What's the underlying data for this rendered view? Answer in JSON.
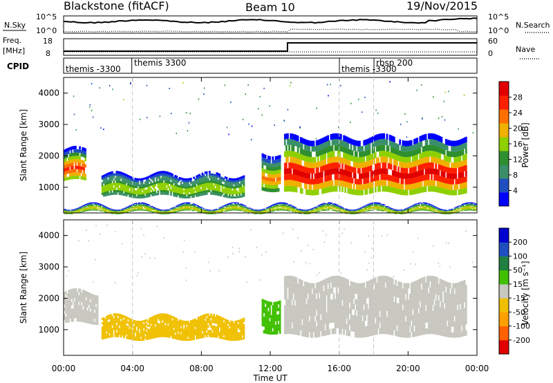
{
  "header": {
    "station": "Blackstone (fitACF)",
    "beam": "Beam 10",
    "date": "19/Nov/2015"
  },
  "strips": {
    "noise": {
      "left_label": "N.Sky",
      "right_label": "N.Search",
      "left_ticks": [
        "10^5",
        "10^0"
      ],
      "right_ticks": [
        "10^5",
        "10^0"
      ]
    },
    "freq": {
      "left_label_1": "Freq.",
      "left_label_2": "[MHz]",
      "right_label": "Nave",
      "left_ticks": [
        "18",
        "8"
      ],
      "right_ticks": [
        "60",
        "0"
      ]
    },
    "cpid": {
      "label": "CPID",
      "segments": [
        {
          "start_h": 0.0,
          "label": "themis -3300"
        },
        {
          "start_h": 4.0,
          "label": "themis 3300"
        },
        {
          "start_h": 16.0,
          "label": "themis -3300"
        },
        {
          "start_h": 18.0,
          "label": "rbsp 200"
        }
      ]
    }
  },
  "panels": [
    {
      "id": "power",
      "ylabel": "Slant Range [km]",
      "colorbar_title": "Power [dB]",
      "colorbar_ticks": [
        "28",
        "24",
        "20",
        "16",
        "12",
        "8",
        "4"
      ]
    },
    {
      "id": "velocity",
      "ylabel": "Slant Range [km]",
      "colorbar_title": "Velocity [m s⁻¹]",
      "colorbar_ticks": [
        "200",
        "100",
        "50",
        "15",
        "-15",
        "-50",
        "-100",
        "-200"
      ]
    }
  ],
  "x_axis": {
    "label": "Time UT",
    "ticks": [
      "00:00",
      "04:00",
      "08:00",
      "12:00",
      "16:00",
      "20:00",
      "00:00"
    ]
  },
  "colors": {
    "power_scale": [
      "#0000ff",
      "#2050c0",
      "#3a8f6a",
      "#2f8f2f",
      "#8fd000",
      "#f0b000",
      "#ff7000",
      "#ff2000",
      "#e00000"
    ],
    "velocity_scale": [
      "#e00000",
      "#ff6000",
      "#ffa000",
      "#f0c000",
      "#c8c8c0",
      "#40c000",
      "#208040",
      "#2050c0",
      "#0000d0"
    ],
    "gridline": "#c8c8c8"
  },
  "chart_data": [
    {
      "type": "heatmap",
      "title": "Power [dB]",
      "xlabel": "Time UT",
      "ylabel": "Slant Range [km]",
      "x_range_hours": [
        0,
        24
      ],
      "ylim": [
        180,
        4500
      ],
      "yticks": [
        1000,
        2000,
        3000,
        4000
      ],
      "colorbar": {
        "range": [
          0,
          30
        ],
        "ticks": [
          4,
          8,
          12,
          16,
          20,
          24,
          28
        ]
      },
      "echo_bands": [
        {
          "t_start": 0.0,
          "t_end": 1.3,
          "range_low": 1200,
          "range_high": 2200,
          "peak_power_db": 28
        },
        {
          "t_start": 2.2,
          "t_end": 10.5,
          "range_low": 700,
          "range_high": 1400,
          "peak_power_db": 16
        },
        {
          "t_start": 11.5,
          "t_end": 12.6,
          "range_low": 900,
          "range_high": 2100,
          "peak_power_db": 22
        },
        {
          "t_start": 12.8,
          "t_end": 23.4,
          "range_low": 800,
          "range_high": 2600,
          "peak_power_db": 30
        },
        {
          "t_start": 0.0,
          "t_end": 24.0,
          "range_low": 200,
          "range_high": 400,
          "peak_power_db": 20
        }
      ]
    },
    {
      "type": "heatmap",
      "title": "Velocity [m s⁻¹]",
      "xlabel": "Time UT",
      "ylabel": "Slant Range [km]",
      "x_range_hours": [
        0,
        24
      ],
      "ylim": [
        180,
        4500
      ],
      "yticks": [
        1000,
        2000,
        3000,
        4000
      ],
      "colorbar": {
        "range": [
          -200,
          200
        ],
        "ticks": [
          -200,
          -100,
          -50,
          -15,
          15,
          50,
          100,
          200
        ]
      },
      "echo_bands": [
        {
          "t_start": 0.0,
          "t_end": 2.0,
          "range_low": 1200,
          "range_high": 2200,
          "velocity": 0
        },
        {
          "t_start": 2.2,
          "t_end": 10.5,
          "range_low": 700,
          "range_high": 1400,
          "velocity": -40
        },
        {
          "t_start": 11.5,
          "t_end": 12.6,
          "range_low": 900,
          "range_high": 2000,
          "velocity": 30
        },
        {
          "t_start": 12.8,
          "t_end": 23.4,
          "range_low": 800,
          "range_high": 2600,
          "velocity": 0
        }
      ]
    },
    {
      "type": "line",
      "title": "Freq. [MHz] / Nave",
      "series": [
        {
          "name": "Freq.",
          "x": [
            0,
            13.0,
            13.0,
            24
          ],
          "y": [
            10.5,
            10.5,
            15.5,
            15.5
          ]
        }
      ]
    }
  ]
}
